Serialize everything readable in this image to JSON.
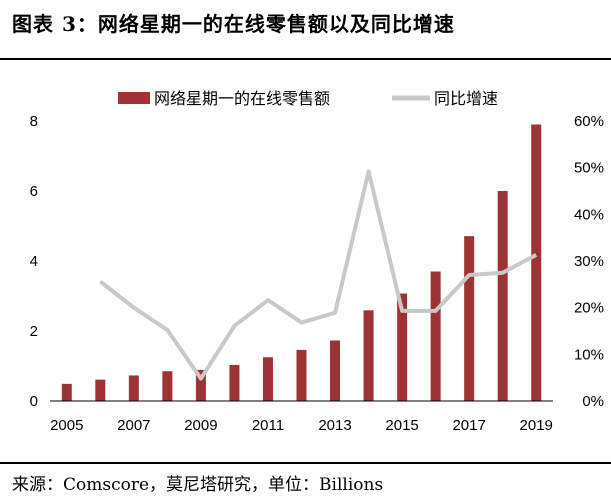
{
  "title": "图表 3：网络星期一的在线零售额以及同比增速",
  "source": "来源：Comscore，莫尼塔研究，单位：Billions",
  "colors": {
    "bar": "#9e3234",
    "line": "#c8c8c8",
    "axis": "#000000"
  },
  "chart_data": {
    "type": "bar",
    "title": "",
    "categories": [
      "2005",
      "2006",
      "2007",
      "2008",
      "2009",
      "2010",
      "2011",
      "2012",
      "2013",
      "2014",
      "2015",
      "2016",
      "2017",
      "2018",
      "2019"
    ],
    "x_tick_labels": [
      "2005",
      "2007",
      "2009",
      "2011",
      "2013",
      "2015",
      "2017",
      "2019"
    ],
    "series": [
      {
        "name": "网络星期一的在线零售额",
        "type": "bar",
        "axis": "left",
        "values": [
          0.49,
          0.61,
          0.73,
          0.85,
          0.89,
          1.03,
          1.25,
          1.46,
          1.73,
          2.59,
          3.07,
          3.7,
          4.71,
          6.0,
          7.9
        ]
      },
      {
        "name": "同比增速",
        "type": "line",
        "axis": "right",
        "values": [
          null,
          25.6,
          20.0,
          15.2,
          4.8,
          16.1,
          21.6,
          16.8,
          18.9,
          49.2,
          19.3,
          19.3,
          27.0,
          27.5,
          31.3
        ]
      }
    ],
    "ylim_left": [
      0,
      8
    ],
    "yticks_left": [
      "0",
      "2",
      "4",
      "6",
      "8"
    ],
    "ylim_right": [
      0,
      60
    ],
    "yticks_right": [
      "0%",
      "10%",
      "20%",
      "30%",
      "40%",
      "50%",
      "60%"
    ],
    "legend_position": "top-center",
    "grid": false
  }
}
